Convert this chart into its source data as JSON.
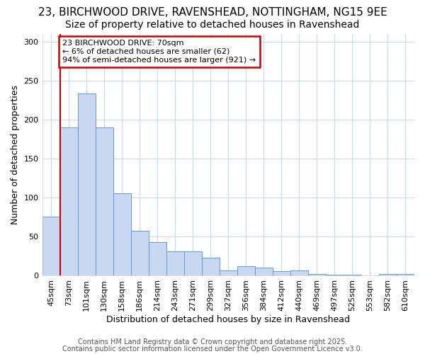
{
  "title_line1": "23, BIRCHWOOD DRIVE, RAVENSHEAD, NOTTINGHAM, NG15 9EE",
  "title_line2": "Size of property relative to detached houses in Ravenshead",
  "xlabel": "Distribution of detached houses by size in Ravenshead",
  "ylabel": "Number of detached properties",
  "categories": [
    "45sqm",
    "73sqm",
    "101sqm",
    "130sqm",
    "158sqm",
    "186sqm",
    "214sqm",
    "243sqm",
    "271sqm",
    "299sqm",
    "327sqm",
    "356sqm",
    "384sqm",
    "412sqm",
    "440sqm",
    "469sqm",
    "497sqm",
    "525sqm",
    "553sqm",
    "582sqm",
    "610sqm"
  ],
  "values": [
    75,
    190,
    233,
    190,
    105,
    57,
    43,
    31,
    31,
    23,
    6,
    12,
    10,
    5,
    6,
    2,
    1,
    1,
    0,
    2,
    2
  ],
  "bar_color": "#c8d8f0",
  "bar_edge_color": "#6699cc",
  "annotation_box_text": "23 BIRCHWOOD DRIVE: 70sqm\n← 6% of detached houses are smaller (62)\n94% of semi-detached houses are larger (921) →",
  "annotation_box_color": "#ffffff",
  "annotation_box_edge_color": "#cc0000",
  "vline_color": "#cc0000",
  "vline_x_index": 1,
  "ylim": [
    0,
    310
  ],
  "yticks": [
    0,
    50,
    100,
    150,
    200,
    250,
    300
  ],
  "footer_line1": "Contains HM Land Registry data © Crown copyright and database right 2025.",
  "footer_line2": "Contains public sector information licensed under the Open Government Licence v3.0.",
  "bg_color": "#ffffff",
  "plot_bg_color": "#ffffff",
  "grid_color": "#c8d8f0",
  "title_fontsize": 11,
  "subtitle_fontsize": 10,
  "axis_label_fontsize": 9,
  "tick_fontsize": 8,
  "annotation_fontsize": 8,
  "footer_fontsize": 7
}
